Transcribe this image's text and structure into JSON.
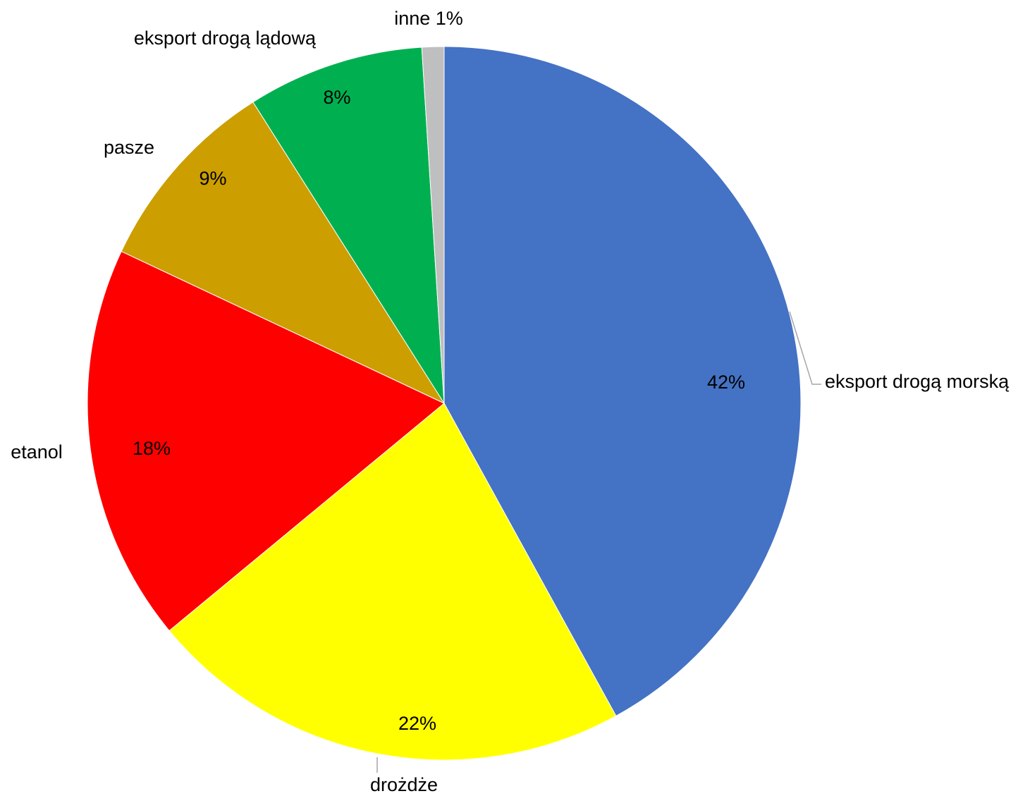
{
  "chart_data": {
    "type": "pie",
    "title": "",
    "start": "top",
    "direction": "clockwise",
    "slices": [
      {
        "name": "eksport drogą morską",
        "value": 42,
        "pct_label": "42%",
        "color": "#4472C4"
      },
      {
        "name": "drożdże",
        "value": 22,
        "pct_label": "22%",
        "color": "#FFFF00"
      },
      {
        "name": "etanol",
        "value": 18,
        "pct_label": "18%",
        "color": "#FF0000"
      },
      {
        "name": "pasze",
        "value": 9,
        "pct_label": "9%",
        "color": "#CC9E00"
      },
      {
        "name": "eksport drogą lądową",
        "value": 8,
        "pct_label": "8%",
        "color": "#00B050"
      },
      {
        "name": "inne",
        "value": 1,
        "pct_label": "inne 1%",
        "color": "#BFBFBF"
      }
    ]
  }
}
